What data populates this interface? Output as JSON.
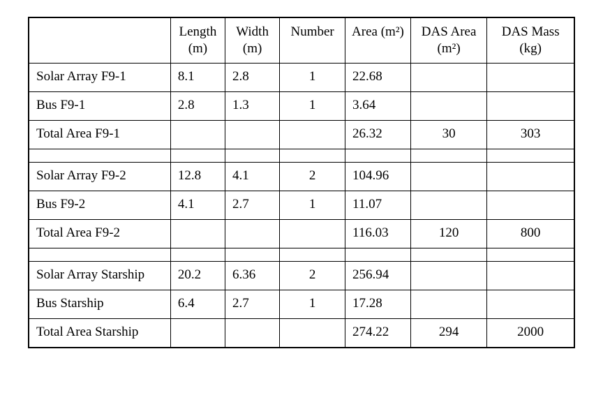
{
  "table": {
    "type": "table",
    "font_family": "Times New Roman",
    "font_size_pt": 14,
    "text_color": "#000000",
    "border_color": "#000000",
    "background_color": "#ffffff",
    "column_widths_pct": [
      26,
      10,
      10,
      12,
      12,
      14,
      16
    ],
    "column_align": [
      "left",
      "left",
      "left",
      "center",
      "left",
      "center",
      "center"
    ],
    "headers": [
      "",
      "Length\n(m)",
      "Width\n(m)",
      "Number",
      "Area\n(m²)",
      "DAS Area\n(m²)",
      "DAS Mass\n(kg)"
    ],
    "rows": [
      {
        "label": "Solar Array F9-1",
        "length": "8.1",
        "width": "2.8",
        "number": "1",
        "area": "22.68",
        "das_area": "",
        "das_mass": ""
      },
      {
        "label": "Bus F9-1",
        "length": "2.8",
        "width": "1.3",
        "number": "1",
        "area": "3.64",
        "das_area": "",
        "das_mass": ""
      },
      {
        "label": "Total Area F9-1",
        "length": "",
        "width": "",
        "number": "",
        "area": "26.32",
        "das_area": "30",
        "das_mass": "303"
      },
      {
        "spacer": true
      },
      {
        "label": "Solar Array F9-2",
        "length": "12.8",
        "width": "4.1",
        "number": "2",
        "area": "104.96",
        "das_area": "",
        "das_mass": ""
      },
      {
        "label": "Bus F9-2",
        "length": "4.1",
        "width": "2.7",
        "number": "1",
        "area": "11.07",
        "das_area": "",
        "das_mass": ""
      },
      {
        "label": "Total Area F9-2",
        "length": "",
        "width": "",
        "number": "",
        "area": "116.03",
        "das_area": "120",
        "das_mass": "800"
      },
      {
        "spacer": true
      },
      {
        "label": "Solar Array Starship",
        "length": "20.2",
        "width": "6.36",
        "number": "2",
        "area": "256.94",
        "das_area": "",
        "das_mass": ""
      },
      {
        "label": "Bus Starship",
        "length": "6.4",
        "width": "2.7",
        "number": "1",
        "area": "17.28",
        "das_area": "",
        "das_mass": ""
      },
      {
        "label": "Total Area Starship",
        "length": "",
        "width": "",
        "number": "",
        "area": "274.22",
        "das_area": "294",
        "das_mass": "2000"
      }
    ]
  }
}
